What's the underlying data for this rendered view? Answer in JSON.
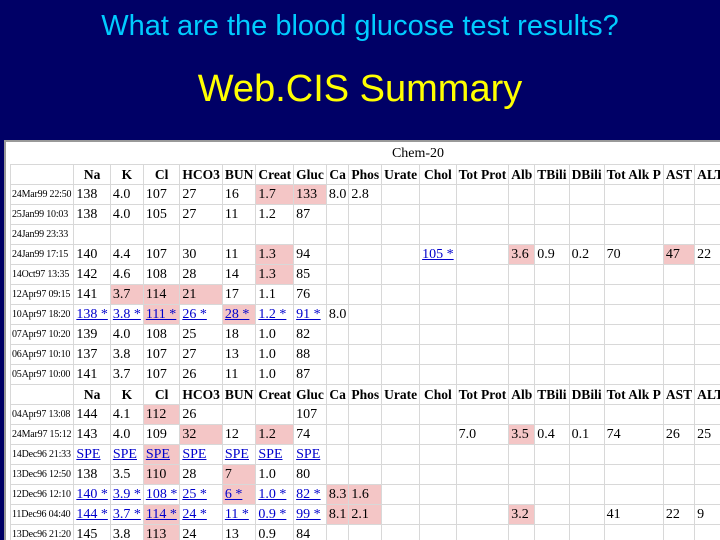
{
  "slide": {
    "title": "What are the blood glucose test results?",
    "subtitle": "Web.CIS Summary"
  },
  "panel": {
    "table_title": "Chem-20",
    "columns": [
      "",
      "Na",
      "K",
      "Cl",
      "HCO3",
      "BUN",
      "Creat",
      "Gluc",
      "Ca",
      "Phos",
      "Urate",
      "Chol",
      "Tot Prot",
      "Alb",
      "TBili",
      "DBili",
      "Tot Alk P",
      "AST",
      "ALT"
    ],
    "rows": [
      {
        "type": "header"
      },
      {
        "type": "data",
        "date": "24Mar99 22:50",
        "cells": [
          "138",
          "4.0",
          "107",
          "27",
          "16",
          "1.7",
          "133",
          "8.0",
          "2.8",
          "",
          "",
          "",
          "",
          "",
          "",
          "",
          "",
          ""
        ],
        "hi": [
          5,
          6
        ]
      },
      {
        "type": "data",
        "date": "25Jan99 10:03",
        "cells": [
          "138",
          "4.0",
          "105",
          "27",
          "11",
          "1.2",
          "87",
          "",
          "",
          "",
          "",
          "",
          "",
          "",
          "",
          "",
          "",
          ""
        ],
        "hi": []
      },
      {
        "type": "data",
        "date": "24Jan99 23:33",
        "cells": [
          "",
          "",
          "",
          "",
          "",
          "",
          "",
          "",
          "",
          "",
          "",
          "",
          "",
          "",
          "",
          "",
          "",
          ""
        ],
        "hi": []
      },
      {
        "type": "data",
        "date": "24Jan99 17:15",
        "cells": [
          "140",
          "4.4",
          "107",
          "30",
          "11",
          "1.3",
          "94",
          "",
          "",
          "",
          "105 *",
          "",
          "3.6",
          "0.9",
          "0.2",
          "70",
          "47",
          "22"
        ],
        "hi": [
          5,
          12,
          16
        ],
        "lnk": [
          10
        ]
      },
      {
        "type": "data",
        "date": "14Oct97 13:35",
        "cells": [
          "142",
          "4.6",
          "108",
          "28",
          "14",
          "1.3",
          "85",
          "",
          "",
          "",
          "",
          "",
          "",
          "",
          "",
          "",
          "",
          ""
        ],
        "hi": [
          5
        ]
      },
      {
        "type": "data",
        "date": "12Apr97 09:15",
        "cells": [
          "141",
          "3.7",
          "114",
          "21",
          "17",
          "1.1",
          "76",
          "",
          "",
          "",
          "",
          "",
          "",
          "",
          "",
          "",
          "",
          ""
        ],
        "hi": [
          1,
          2,
          3
        ]
      },
      {
        "type": "data",
        "date": "10Apr97 18:20",
        "cells": [
          "138 *",
          "3.8 *",
          "111 *",
          "26 *",
          "28 *",
          "1.2 *",
          "91 *",
          "8.0",
          "",
          "",
          "",
          "",
          "",
          "",
          "",
          "",
          "",
          ""
        ],
        "hi": [
          2,
          4
        ],
        "lnk": [
          0,
          1,
          2,
          3,
          4,
          5,
          6
        ]
      },
      {
        "type": "data",
        "date": "07Apr97 10:20",
        "cells": [
          "139",
          "4.0",
          "108",
          "25",
          "18",
          "1.0",
          "82",
          "",
          "",
          "",
          "",
          "",
          "",
          "",
          "",
          "",
          "",
          ""
        ],
        "hi": []
      },
      {
        "type": "data",
        "date": "06Apr97 10:10",
        "cells": [
          "137",
          "3.8",
          "107",
          "27",
          "13",
          "1.0",
          "88",
          "",
          "",
          "",
          "",
          "",
          "",
          "",
          "",
          "",
          "",
          ""
        ],
        "hi": []
      },
      {
        "type": "data",
        "date": "05Apr97 10:00",
        "cells": [
          "141",
          "3.7",
          "107",
          "26",
          "11",
          "1.0",
          "87",
          "",
          "",
          "",
          "",
          "",
          "",
          "",
          "",
          "",
          "",
          ""
        ],
        "hi": []
      },
      {
        "type": "header"
      },
      {
        "type": "data",
        "date": "04Apr97 13:08",
        "cells": [
          "144",
          "4.1",
          "112",
          "26",
          "",
          "",
          "107",
          "",
          "",
          "",
          "",
          "",
          "",
          "",
          "",
          "",
          "",
          ""
        ],
        "hi": [
          2
        ]
      },
      {
        "type": "data",
        "date": "24Mar97 15:12",
        "cells": [
          "143",
          "4.0",
          "109",
          "32",
          "12",
          "1.2",
          "74",
          "",
          "",
          "",
          "",
          "7.0",
          "3.5",
          "0.4",
          "0.1",
          "74",
          "26",
          "25"
        ],
        "hi": [
          3,
          5,
          12
        ]
      },
      {
        "type": "data",
        "date": "14Dec96 21:33",
        "cells": [
          "SPE",
          "SPE",
          "SPE",
          "SPE",
          "SPE",
          "SPE",
          "SPE",
          "",
          "",
          "",
          "",
          "",
          "",
          "",
          "",
          "",
          "",
          ""
        ],
        "hi": [
          2
        ],
        "lnk": [
          0,
          1,
          2,
          3,
          4,
          5,
          6
        ]
      },
      {
        "type": "data",
        "date": "13Dec96 12:50",
        "cells": [
          "138",
          "3.5",
          "110",
          "28",
          "7",
          "1.0",
          "80",
          "",
          "",
          "",
          "",
          "",
          "",
          "",
          "",
          "",
          "",
          ""
        ],
        "hi": [
          2,
          4
        ]
      },
      {
        "type": "data",
        "date": "12Dec96 12:10",
        "cells": [
          "140 *",
          "3.9 *",
          "108 *",
          "25 *",
          "6 *",
          "1.0 *",
          "82 *",
          "8.3",
          "1.6",
          "",
          "",
          "",
          "",
          "",
          "",
          "",
          "",
          ""
        ],
        "hi": [
          4,
          7,
          8
        ],
        "lnk": [
          0,
          1,
          2,
          3,
          4,
          5,
          6
        ]
      },
      {
        "type": "data",
        "date": "11Dec96 04:40",
        "cells": [
          "144 *",
          "3.7 *",
          "114 *",
          "24 *",
          "11 *",
          "0.9 *",
          "99 *",
          "8.1",
          "2.1",
          "",
          "",
          "",
          "3.2",
          "",
          "",
          "41",
          "22",
          "9"
        ],
        "hi": [
          2,
          7,
          8,
          12
        ],
        "lnk": [
          0,
          1,
          2,
          3,
          4,
          5,
          6
        ]
      },
      {
        "type": "data",
        "date": "13Dec96 21:20",
        "cells": [
          "145",
          "3.8",
          "113",
          "24",
          "13",
          "0.9",
          "84",
          "",
          "",
          "",
          "",
          "",
          "",
          "",
          "",
          "",
          "",
          ""
        ],
        "hi": [
          2
        ]
      }
    ]
  }
}
